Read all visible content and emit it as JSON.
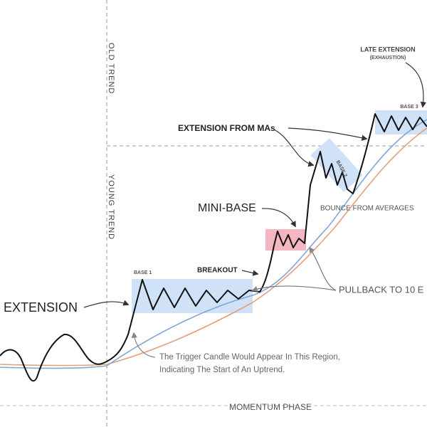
{
  "labels": {
    "old_trend": "OLD TREND",
    "young_trend": "YOUNG TREND",
    "late_extension": "LATE EXTENSION",
    "exhaustion": "(EXHAUSTION)",
    "base_3": "BASE 3",
    "extension_from_mas": "EXTENSION FROM MAs",
    "base_2": "BASE 2",
    "mini_base": "MINI-BASE",
    "bounce": "BOUNCE FROM AVERAGES",
    "base_1": "BASE 1",
    "breakout": "BREAKOUT",
    "pullback": "PULLBACK TO 10 E",
    "extension": "EXTENSION",
    "trigger_line_1": "The Trigger Candle Would Appear In This Region,",
    "trigger_line_2": "Indicating The Start of An Uptrend.",
    "momentum_phase": "MOMENTUM PHASE"
  }
}
